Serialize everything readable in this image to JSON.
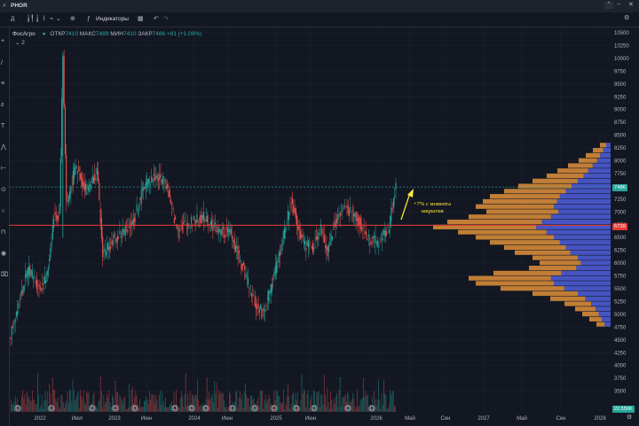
{
  "topbar": {
    "symbol": "PHOR"
  },
  "toolbar": {
    "interval": "Д",
    "indicators_label": "Индикаторы"
  },
  "legend": {
    "name": "ФосАгро",
    "open_label": "ОТКР",
    "open": "7410",
    "high_label": "МАКС",
    "high": "7489",
    "low_label": "МИН",
    "low": "7410",
    "close_label": "ЗАКР",
    "close": "7486",
    "change": "+81 (+1.09%)",
    "collapsed_count": "2"
  },
  "annotation": {
    "line1": "+7% с момента",
    "line2": "закрытия"
  },
  "price_badges": {
    "current": "7486",
    "level": "6739",
    "volume": "22.556K"
  },
  "colors": {
    "up": "#26a69a",
    "down": "#ef5350",
    "level_line": "#e53935",
    "annotation": "#ffeb3b",
    "profile_orange": "#e0913a",
    "profile_blue": "#4c5bd4"
  },
  "chart_data": {
    "type": "candlestick",
    "y_axis_ticks": [
      "10500",
      "10250",
      "10000",
      "9750",
      "9500",
      "9250",
      "9000",
      "8750",
      "8500",
      "8250",
      "8000",
      "7750",
      "7500",
      "7250",
      "7000",
      "6750",
      "6500",
      "6250",
      "6000",
      "5750",
      "5500",
      "5250",
      "5000",
      "4750",
      "4500",
      "4250",
      "4000",
      "3750",
      "3500"
    ],
    "x_axis_ticks": [
      "2022",
      "Июл",
      "2023",
      "Июн",
      "2024",
      "Июн",
      "2025",
      "Июн",
      "2026",
      "Май",
      "Сен",
      "2027",
      "Май",
      "Сен",
      "2028"
    ],
    "ylim": [
      3500,
      10600
    ],
    "horizontal_level": 6739,
    "last_close": 7486,
    "price_path": [
      {
        "x": 0.0,
        "y": 4600
      },
      {
        "x": 0.2,
        "y": 5200
      },
      {
        "x": 0.5,
        "y": 5900
      },
      {
        "x": 0.8,
        "y": 5500
      },
      {
        "x": 1.0,
        "y": 5700
      },
      {
        "x": 1.2,
        "y": 6900
      },
      {
        "x": 1.35,
        "y": 6900
      },
      {
        "x": 1.45,
        "y": 10100
      },
      {
        "x": 1.55,
        "y": 7100
      },
      {
        "x": 1.8,
        "y": 7900
      },
      {
        "x": 2.1,
        "y": 7400
      },
      {
        "x": 2.4,
        "y": 7800
      },
      {
        "x": 2.55,
        "y": 6200
      },
      {
        "x": 2.8,
        "y": 6400
      },
      {
        "x": 3.1,
        "y": 6600
      },
      {
        "x": 3.4,
        "y": 6800
      },
      {
        "x": 3.7,
        "y": 7500
      },
      {
        "x": 4.0,
        "y": 7700
      },
      {
        "x": 4.3,
        "y": 7600
      },
      {
        "x": 4.6,
        "y": 6700
      },
      {
        "x": 5.0,
        "y": 6800
      },
      {
        "x": 5.4,
        "y": 6900
      },
      {
        "x": 5.8,
        "y": 6600
      },
      {
        "x": 6.1,
        "y": 6600
      },
      {
        "x": 6.4,
        "y": 6000
      },
      {
        "x": 6.8,
        "y": 5200
      },
      {
        "x": 7.0,
        "y": 5000
      },
      {
        "x": 7.3,
        "y": 5700
      },
      {
        "x": 7.6,
        "y": 6600
      },
      {
        "x": 7.8,
        "y": 7250
      },
      {
        "x": 8.1,
        "y": 6400
      },
      {
        "x": 8.4,
        "y": 6300
      },
      {
        "x": 8.6,
        "y": 6700
      },
      {
        "x": 8.8,
        "y": 6200
      },
      {
        "x": 9.0,
        "y": 6800
      },
      {
        "x": 9.3,
        "y": 7100
      },
      {
        "x": 9.6,
        "y": 6900
      },
      {
        "x": 9.9,
        "y": 6500
      },
      {
        "x": 10.2,
        "y": 6400
      },
      {
        "x": 10.5,
        "y": 6700
      },
      {
        "x": 10.7,
        "y": 7486
      }
    ],
    "volume_profile": [
      {
        "price": 8300,
        "value": 3
      },
      {
        "price": 8200,
        "value": 5
      },
      {
        "price": 8100,
        "value": 7
      },
      {
        "price": 8000,
        "value": 9
      },
      {
        "price": 7900,
        "value": 12
      },
      {
        "price": 7800,
        "value": 15
      },
      {
        "price": 7700,
        "value": 18
      },
      {
        "price": 7600,
        "value": 22
      },
      {
        "price": 7500,
        "value": 26
      },
      {
        "price": 7400,
        "value": 30
      },
      {
        "price": 7300,
        "value": 34
      },
      {
        "price": 7200,
        "value": 36
      },
      {
        "price": 7100,
        "value": 38
      },
      {
        "price": 7000,
        "value": 35
      },
      {
        "price": 6900,
        "value": 40
      },
      {
        "price": 6800,
        "value": 46
      },
      {
        "price": 6700,
        "value": 50
      },
      {
        "price": 6600,
        "value": 43
      },
      {
        "price": 6500,
        "value": 38
      },
      {
        "price": 6400,
        "value": 34
      },
      {
        "price": 6300,
        "value": 30
      },
      {
        "price": 6200,
        "value": 27
      },
      {
        "price": 6100,
        "value": 22
      },
      {
        "price": 6000,
        "value": 20
      },
      {
        "price": 5900,
        "value": 23
      },
      {
        "price": 5800,
        "value": 33
      },
      {
        "price": 5700,
        "value": 40
      },
      {
        "price": 5600,
        "value": 38
      },
      {
        "price": 5500,
        "value": 31
      },
      {
        "price": 5400,
        "value": 22
      },
      {
        "price": 5300,
        "value": 17
      },
      {
        "price": 5200,
        "value": 13
      },
      {
        "price": 5100,
        "value": 10
      },
      {
        "price": 5000,
        "value": 8
      },
      {
        "price": 4900,
        "value": 6
      },
      {
        "price": 4800,
        "value": 4
      }
    ]
  }
}
